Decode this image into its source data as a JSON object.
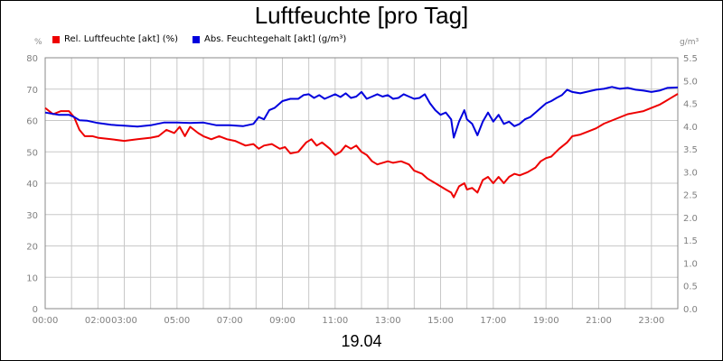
{
  "chart_data": {
    "type": "line",
    "title": "Luftfeuchte [pro Tag]",
    "date_label": "19.04",
    "left_axis": {
      "unit": "%",
      "ticks": [
        0,
        10,
        20,
        30,
        40,
        50,
        60,
        70,
        80
      ],
      "range": [
        0,
        80
      ]
    },
    "right_axis": {
      "unit": "g/m³",
      "ticks": [
        "0.0",
        "0.5",
        "1.0",
        "1.5",
        "2.0",
        "2.5",
        "3.0",
        "3.5",
        "4.0",
        "4.5",
        "5.0",
        "5.5"
      ],
      "range": [
        0,
        5.5
      ]
    },
    "x_axis": {
      "range": [
        0,
        24
      ],
      "tick_labels": [
        {
          "x": 0,
          "label": "00:00"
        },
        {
          "x": 2,
          "label": "02:00"
        },
        {
          "x": 3,
          "label": "03:00"
        },
        {
          "x": 5,
          "label": "05:00"
        },
        {
          "x": 7,
          "label": "07:00"
        },
        {
          "x": 9,
          "label": "09:00"
        },
        {
          "x": 11,
          "label": "11:00"
        },
        {
          "x": 13,
          "label": "13:00"
        },
        {
          "x": 15,
          "label": "15:00"
        },
        {
          "x": 17,
          "label": "17:00"
        },
        {
          "x": 19,
          "label": "19:00"
        },
        {
          "x": 21,
          "label": "21:00"
        },
        {
          "x": 23,
          "label": "23:00"
        }
      ]
    },
    "grid": true,
    "legend_position": "top-left",
    "series": [
      {
        "name": "Rel. Luftfeuchte [akt] (%)",
        "color": "#ee0000",
        "axis": "left",
        "points": [
          [
            0.0,
            64
          ],
          [
            0.3,
            62
          ],
          [
            0.6,
            63
          ],
          [
            0.9,
            63
          ],
          [
            1.1,
            61
          ],
          [
            1.3,
            57
          ],
          [
            1.5,
            55
          ],
          [
            1.8,
            55
          ],
          [
            2.0,
            54.5
          ],
          [
            2.5,
            54
          ],
          [
            3.0,
            53.5
          ],
          [
            3.5,
            54
          ],
          [
            4.0,
            54.5
          ],
          [
            4.3,
            55
          ],
          [
            4.6,
            57
          ],
          [
            4.9,
            56
          ],
          [
            5.1,
            58
          ],
          [
            5.3,
            55
          ],
          [
            5.5,
            58
          ],
          [
            5.8,
            56
          ],
          [
            6.0,
            55
          ],
          [
            6.3,
            54
          ],
          [
            6.6,
            55
          ],
          [
            6.9,
            54
          ],
          [
            7.2,
            53.5
          ],
          [
            7.6,
            52
          ],
          [
            7.9,
            52.5
          ],
          [
            8.1,
            51
          ],
          [
            8.3,
            52
          ],
          [
            8.6,
            52.5
          ],
          [
            8.9,
            51
          ],
          [
            9.1,
            51.5
          ],
          [
            9.3,
            49.5
          ],
          [
            9.6,
            50
          ],
          [
            9.9,
            53
          ],
          [
            10.1,
            54
          ],
          [
            10.3,
            52
          ],
          [
            10.5,
            53
          ],
          [
            10.8,
            51
          ],
          [
            11.0,
            49
          ],
          [
            11.2,
            50
          ],
          [
            11.4,
            52
          ],
          [
            11.6,
            51
          ],
          [
            11.8,
            52
          ],
          [
            12.0,
            50
          ],
          [
            12.2,
            49
          ],
          [
            12.4,
            47
          ],
          [
            12.6,
            46
          ],
          [
            12.8,
            46.5
          ],
          [
            13.0,
            47
          ],
          [
            13.2,
            46.5
          ],
          [
            13.5,
            47
          ],
          [
            13.8,
            46
          ],
          [
            14.0,
            44
          ],
          [
            14.3,
            43
          ],
          [
            14.5,
            41.5
          ],
          [
            14.8,
            40
          ],
          [
            15.0,
            39
          ],
          [
            15.2,
            38
          ],
          [
            15.4,
            37
          ],
          [
            15.5,
            35.5
          ],
          [
            15.7,
            39
          ],
          [
            15.9,
            40
          ],
          [
            16.0,
            38
          ],
          [
            16.2,
            38.5
          ],
          [
            16.4,
            37
          ],
          [
            16.6,
            41
          ],
          [
            16.8,
            42
          ],
          [
            17.0,
            40
          ],
          [
            17.2,
            42
          ],
          [
            17.4,
            40
          ],
          [
            17.6,
            42
          ],
          [
            17.8,
            43
          ],
          [
            18.0,
            42.5
          ],
          [
            18.3,
            43.5
          ],
          [
            18.6,
            45
          ],
          [
            18.8,
            47
          ],
          [
            19.0,
            48
          ],
          [
            19.2,
            48.5
          ],
          [
            19.5,
            51
          ],
          [
            19.8,
            53
          ],
          [
            20.0,
            55
          ],
          [
            20.3,
            55.5
          ],
          [
            20.6,
            56.5
          ],
          [
            20.9,
            57.5
          ],
          [
            21.2,
            59
          ],
          [
            21.5,
            60
          ],
          [
            21.8,
            61
          ],
          [
            22.1,
            62
          ],
          [
            22.4,
            62.5
          ],
          [
            22.7,
            63
          ],
          [
            23.0,
            64
          ],
          [
            23.3,
            65
          ],
          [
            23.5,
            66
          ],
          [
            23.7,
            67
          ],
          [
            24.0,
            68.5
          ]
        ]
      },
      {
        "name": "Abs. Feuchtegehalt [akt] (g/m³)",
        "color": "#0000dd",
        "axis": "right",
        "points": [
          [
            0.0,
            4.3
          ],
          [
            0.5,
            4.25
          ],
          [
            0.9,
            4.25
          ],
          [
            1.1,
            4.2
          ],
          [
            1.3,
            4.13
          ],
          [
            1.6,
            4.12
          ],
          [
            2.0,
            4.07
          ],
          [
            2.5,
            4.03
          ],
          [
            3.0,
            4.01
          ],
          [
            3.5,
            3.99
          ],
          [
            4.0,
            4.02
          ],
          [
            4.5,
            4.08
          ],
          [
            5.0,
            4.08
          ],
          [
            5.5,
            4.07
          ],
          [
            6.0,
            4.08
          ],
          [
            6.5,
            4.02
          ],
          [
            7.0,
            4.02
          ],
          [
            7.5,
            4.0
          ],
          [
            7.9,
            4.05
          ],
          [
            8.1,
            4.2
          ],
          [
            8.3,
            4.15
          ],
          [
            8.5,
            4.35
          ],
          [
            8.7,
            4.4
          ],
          [
            9.0,
            4.55
          ],
          [
            9.3,
            4.6
          ],
          [
            9.6,
            4.6
          ],
          [
            9.8,
            4.68
          ],
          [
            10.0,
            4.7
          ],
          [
            10.2,
            4.62
          ],
          [
            10.4,
            4.68
          ],
          [
            10.6,
            4.6
          ],
          [
            10.8,
            4.65
          ],
          [
            11.0,
            4.7
          ],
          [
            11.2,
            4.64
          ],
          [
            11.4,
            4.72
          ],
          [
            11.6,
            4.62
          ],
          [
            11.8,
            4.65
          ],
          [
            12.0,
            4.75
          ],
          [
            12.2,
            4.6
          ],
          [
            12.4,
            4.65
          ],
          [
            12.6,
            4.7
          ],
          [
            12.8,
            4.65
          ],
          [
            13.0,
            4.68
          ],
          [
            13.2,
            4.6
          ],
          [
            13.4,
            4.62
          ],
          [
            13.6,
            4.7
          ],
          [
            13.8,
            4.65
          ],
          [
            14.0,
            4.6
          ],
          [
            14.2,
            4.62
          ],
          [
            14.4,
            4.7
          ],
          [
            14.6,
            4.5
          ],
          [
            14.8,
            4.35
          ],
          [
            15.0,
            4.25
          ],
          [
            15.2,
            4.3
          ],
          [
            15.4,
            4.15
          ],
          [
            15.5,
            3.75
          ],
          [
            15.7,
            4.1
          ],
          [
            15.9,
            4.35
          ],
          [
            16.0,
            4.15
          ],
          [
            16.2,
            4.05
          ],
          [
            16.4,
            3.8
          ],
          [
            16.6,
            4.1
          ],
          [
            16.8,
            4.3
          ],
          [
            17.0,
            4.1
          ],
          [
            17.2,
            4.25
          ],
          [
            17.4,
            4.05
          ],
          [
            17.6,
            4.1
          ],
          [
            17.8,
            4.0
          ],
          [
            18.0,
            4.05
          ],
          [
            18.2,
            4.15
          ],
          [
            18.4,
            4.2
          ],
          [
            18.6,
            4.3
          ],
          [
            18.8,
            4.4
          ],
          [
            19.0,
            4.5
          ],
          [
            19.2,
            4.55
          ],
          [
            19.4,
            4.62
          ],
          [
            19.6,
            4.68
          ],
          [
            19.8,
            4.8
          ],
          [
            20.0,
            4.75
          ],
          [
            20.3,
            4.72
          ],
          [
            20.6,
            4.76
          ],
          [
            20.9,
            4.8
          ],
          [
            21.2,
            4.82
          ],
          [
            21.5,
            4.86
          ],
          [
            21.8,
            4.82
          ],
          [
            22.1,
            4.84
          ],
          [
            22.4,
            4.8
          ],
          [
            22.7,
            4.78
          ],
          [
            23.0,
            4.75
          ],
          [
            23.3,
            4.78
          ],
          [
            23.6,
            4.84
          ],
          [
            24.0,
            4.85
          ]
        ]
      }
    ]
  }
}
